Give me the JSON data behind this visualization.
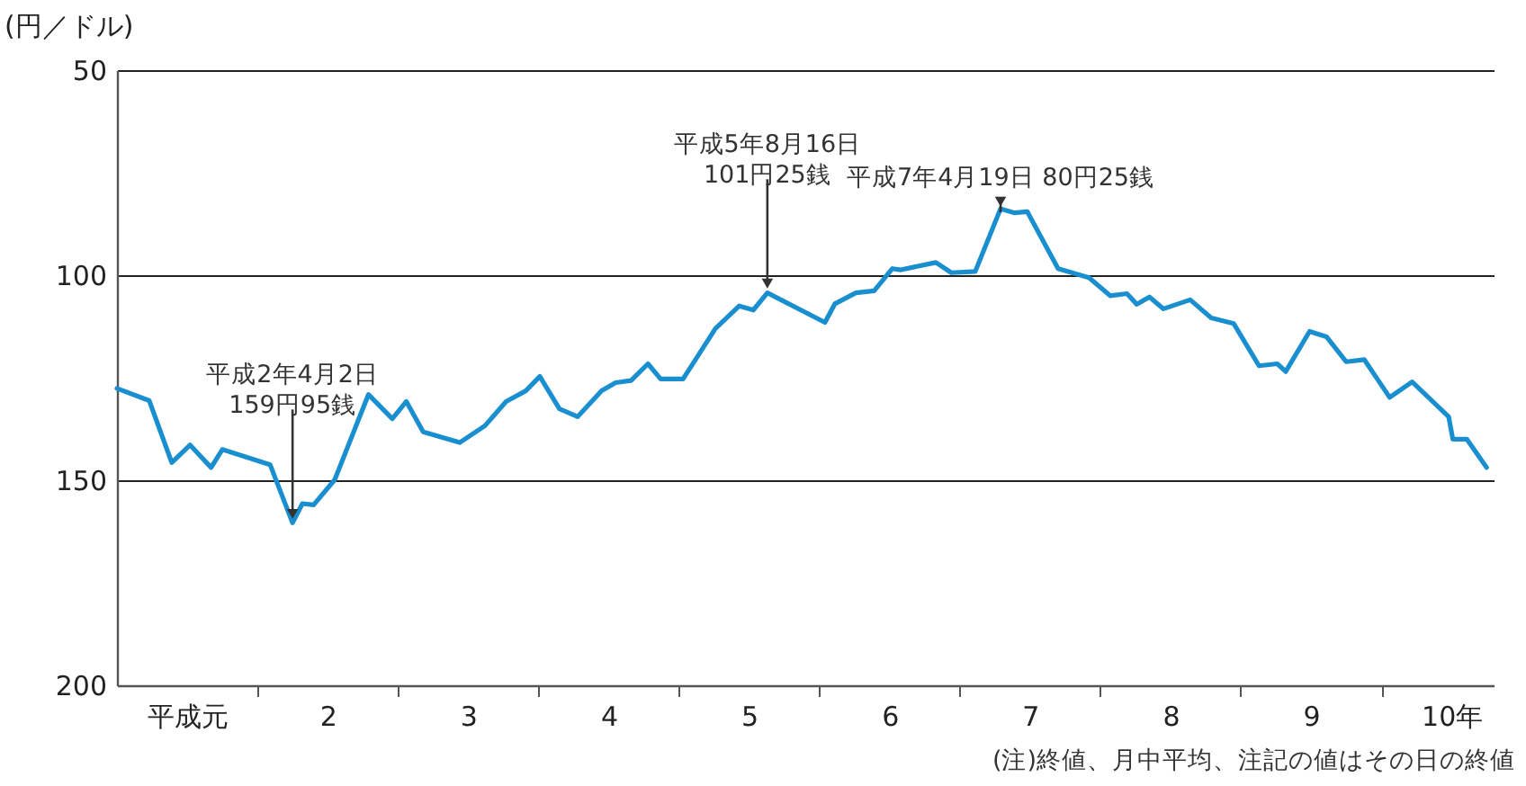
{
  "chart_data": {
    "type": "line",
    "ylabel": "(円／ドル)",
    "x": [
      0.5,
      0.73,
      0.89,
      1.02,
      1.17,
      1.25,
      1.59,
      1.75,
      1.82,
      1.9,
      2.05,
      2.29,
      2.46,
      2.56,
      2.68,
      2.94,
      3.12,
      3.27,
      3.41,
      3.51,
      3.65,
      3.78,
      3.95,
      4.05,
      4.16,
      4.28,
      4.37,
      4.53,
      4.76,
      4.93,
      5.03,
      5.13,
      5.54,
      5.61,
      5.76,
      5.89,
      6.02,
      6.08,
      6.33,
      6.44,
      6.61,
      6.79,
      6.89,
      6.98,
      7.2,
      7.42,
      7.57,
      7.69,
      7.76,
      7.85,
      7.95,
      8.14,
      8.29,
      8.45,
      8.63,
      8.76,
      8.82,
      8.99,
      9.11,
      9.25,
      9.38,
      9.56,
      9.72,
      9.98,
      10.01,
      10.11,
      10.25
    ],
    "series": [
      {
        "color": "#1a8fd0",
        "values": [
          127.6,
          130.6,
          145.7,
          141.4,
          146.9,
          142.5,
          146.2,
          160.4,
          155.7,
          156.0,
          149.9,
          129.1,
          135.0,
          130.8,
          138.2,
          140.8,
          136.7,
          130.8,
          128.2,
          124.7,
          132.6,
          134.5,
          128.2,
          126.2,
          125.7,
          121.6,
          125.3,
          125.3,
          113.0,
          107.5,
          108.5,
          104.3,
          111.5,
          107.0,
          104.3,
          103.8,
          98.4,
          98.7,
          96.9,
          99.4,
          99.1,
          83.8,
          84.8,
          84.5,
          98.4,
          100.6,
          105.0,
          104.5,
          107.1,
          105.3,
          108.2,
          106.0,
          110.4,
          111.8,
          122.1,
          121.6,
          123.5,
          113.7,
          115.0,
          121.1,
          120.6,
          129.8,
          126.0,
          134.5,
          140.0,
          140.0,
          146.9
        ]
      }
    ],
    "xlim": [
      0.5,
      10.3
    ],
    "xticks": [
      {
        "value": 1,
        "label": "平成元"
      },
      {
        "value": 1.5,
        "label": null
      },
      2,
      {
        "value": 2.5,
        "label": null
      },
      3,
      {
        "value": 3.5,
        "label": null
      },
      4,
      {
        "value": 4.5,
        "label": null
      },
      5,
      {
        "value": 5.5,
        "label": null
      },
      6,
      {
        "value": 6.5,
        "label": null
      },
      7,
      {
        "value": 7.5,
        "label": null
      },
      8,
      {
        "value": 8.5,
        "label": null
      },
      9,
      {
        "value": 9.5,
        "label": null
      },
      {
        "value": 10,
        "label": "10年"
      }
    ],
    "ylim": [
      200,
      50
    ],
    "yticks": [
      50,
      100,
      150,
      200
    ],
    "grid": "y",
    "marker": "none",
    "line_style": "solid",
    "annotations": [
      {
        "text": "平成2年4月2日\n159円95銭",
        "x": 1.75,
        "y": 159.95
      },
      {
        "text": "平成5年8月16日\n101円25銭",
        "x": 5.13,
        "y": 103.8
      },
      {
        "text": "平成7年4月19日 80円25銭",
        "x": 6.79,
        "y": 83.8
      },
      "(注)終値、月中平均、注記の値はその日の終値"
    ]
  }
}
